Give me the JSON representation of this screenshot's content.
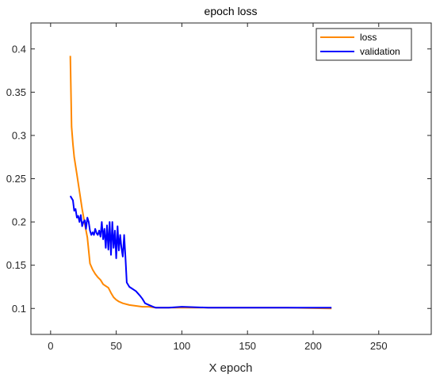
{
  "chart_data": {
    "type": "line",
    "title": "epoch loss",
    "xlabel": "X epoch",
    "ylabel": "",
    "xlim": [
      -15,
      290
    ],
    "ylim": [
      0.07,
      0.43
    ],
    "xticks": [
      0,
      50,
      100,
      150,
      200,
      250
    ],
    "yticks": [
      0.1,
      0.15,
      0.2,
      0.25,
      0.3,
      0.35,
      0.4
    ],
    "xtick_labels": [
      "0",
      "50",
      "100",
      "150",
      "200",
      "250"
    ],
    "ytick_labels": [
      "0.1",
      "0.15",
      "0.2",
      "0.25",
      "0.3",
      "0.35",
      "0.4"
    ],
    "grid": false,
    "legend_position": "top-right",
    "series": [
      {
        "name": "loss",
        "color": "#ff8800",
        "x": [
          15,
          16,
          17,
          18,
          20,
          22,
          24,
          26,
          28,
          30,
          32,
          34,
          36,
          38,
          40,
          42,
          44,
          46,
          48,
          50,
          52,
          55,
          60,
          65,
          70,
          75,
          80,
          90,
          100,
          120,
          150,
          180,
          214
        ],
        "y": [
          0.392,
          0.31,
          0.29,
          0.275,
          0.255,
          0.235,
          0.215,
          0.198,
          0.182,
          0.152,
          0.145,
          0.14,
          0.136,
          0.133,
          0.128,
          0.126,
          0.124,
          0.118,
          0.113,
          0.11,
          0.108,
          0.106,
          0.104,
          0.103,
          0.102,
          0.102,
          0.101,
          0.101,
          0.101,
          0.101,
          0.101,
          0.101,
          0.1
        ]
      },
      {
        "name": "validation",
        "color": "#0000ff",
        "x": [
          15,
          17,
          18,
          19,
          20,
          21,
          22,
          23,
          24,
          25,
          26,
          27,
          28,
          29,
          30,
          31,
          32,
          33,
          34,
          35,
          36,
          37,
          38,
          39,
          40,
          41,
          42,
          43,
          44,
          45,
          46,
          47,
          48,
          49,
          50,
          51,
          52,
          53,
          54,
          55,
          56,
          57,
          58,
          60,
          62,
          65,
          68,
          70,
          72,
          75,
          78,
          80,
          82,
          85,
          90,
          100,
          120,
          150,
          180,
          214
        ],
        "y": [
          0.23,
          0.225,
          0.213,
          0.215,
          0.205,
          0.207,
          0.2,
          0.208,
          0.195,
          0.2,
          0.202,
          0.192,
          0.205,
          0.2,
          0.19,
          0.185,
          0.188,
          0.185,
          0.192,
          0.187,
          0.185,
          0.19,
          0.183,
          0.2,
          0.18,
          0.192,
          0.17,
          0.196,
          0.168,
          0.2,
          0.162,
          0.2,
          0.17,
          0.19,
          0.158,
          0.195,
          0.167,
          0.185,
          0.17,
          0.16,
          0.185,
          0.16,
          0.13,
          0.125,
          0.123,
          0.12,
          0.115,
          0.111,
          0.106,
          0.104,
          0.102,
          0.101,
          0.101,
          0.101,
          0.101,
          0.102,
          0.101,
          0.101,
          0.101,
          0.101
        ]
      }
    ]
  }
}
